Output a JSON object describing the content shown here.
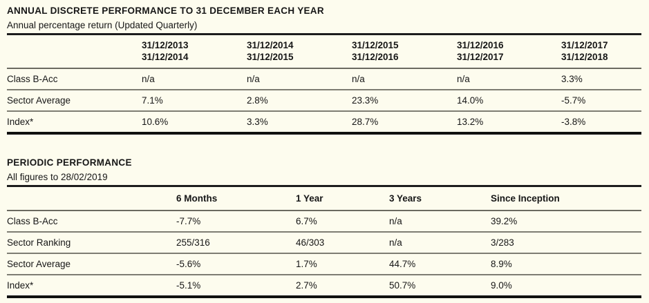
{
  "colors": {
    "background": "#FDFCEE",
    "text": "#161616",
    "rule_heavy": "#101010",
    "rule_light": "#7d7c72"
  },
  "annual": {
    "title": "ANNUAL DISCRETE PERFORMANCE TO 31 DECEMBER EACH YEAR",
    "subtitle": "Annual percentage return (Updated Quarterly)",
    "columns": [
      {
        "top": "31/12/2013",
        "bottom": "31/12/2014"
      },
      {
        "top": "31/12/2014",
        "bottom": "31/12/2015"
      },
      {
        "top": "31/12/2015",
        "bottom": "31/12/2016"
      },
      {
        "top": "31/12/2016",
        "bottom": "31/12/2017"
      },
      {
        "top": "31/12/2017",
        "bottom": "31/12/2018"
      }
    ],
    "rows": [
      {
        "label": "Class B-Acc",
        "values": [
          "n/a",
          "n/a",
          "n/a",
          "n/a",
          "3.3%"
        ]
      },
      {
        "label": "Sector Average",
        "values": [
          "7.1%",
          "2.8%",
          "23.3%",
          "14.0%",
          "-5.7%"
        ]
      },
      {
        "label": "Index*",
        "values": [
          "10.6%",
          "3.3%",
          "28.7%",
          "13.2%",
          "-3.8%"
        ]
      }
    ]
  },
  "periodic": {
    "title": "PERIODIC PERFORMANCE",
    "subtitle": "All figures to 28/02/2019",
    "columns": [
      "6 Months",
      "1 Year",
      "3 Years",
      "Since Inception"
    ],
    "rows": [
      {
        "label": "Class B-Acc",
        "values": [
          "-7.7%",
          "6.7%",
          "n/a",
          "39.2%"
        ]
      },
      {
        "label": "Sector Ranking",
        "values": [
          "255/316",
          "46/303",
          "n/a",
          "3/283"
        ]
      },
      {
        "label": "Sector Average",
        "values": [
          "-5.6%",
          "1.7%",
          "44.7%",
          "8.9%"
        ]
      },
      {
        "label": "Index*",
        "values": [
          "-5.1%",
          "2.7%",
          "50.7%",
          "9.0%"
        ]
      }
    ]
  }
}
